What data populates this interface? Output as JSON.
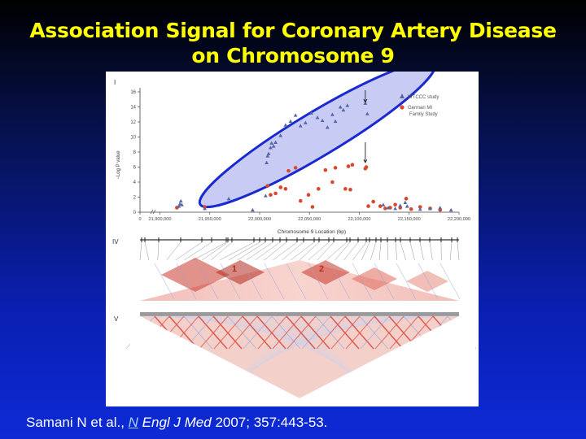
{
  "slide": {
    "title_line1": "Association Signal for Coronary Artery Disease",
    "title_line2": "on Chromosome 9",
    "citation_prefix": "Samani N et al., ",
    "citation_n": "N",
    "citation_journal": " Engl J Med",
    "citation_suffix": "  2007; 357:443-53."
  },
  "colors": {
    "wtccc": "#5866a8",
    "german": "#d7482c",
    "highlight_fill": "#c8ccf4",
    "highlight_stroke": "#1a2ad0"
  },
  "panels": {
    "panel_i": "I",
    "panel_iv": "IV",
    "panel_v": "V",
    "block1": "1",
    "block2": "2"
  },
  "chart_data": {
    "type": "scatter",
    "title": "",
    "xlabel": "Chromosome 9 Location (bp)",
    "ylabel": "−Log P value",
    "ylim": [
      0,
      16
    ],
    "yticks": [
      0,
      2,
      4,
      6,
      8,
      10,
      12,
      14,
      16
    ],
    "xticks": [
      "0",
      "21,900,000",
      "21,950,000",
      "22,000,000",
      "22,050,000",
      "22,100,000",
      "22,150,000",
      "22,200,000"
    ],
    "xlim": [
      21880000,
      22200000
    ],
    "legend": [
      "WTCCC study",
      "German MI Family Study"
    ],
    "series": [
      {
        "name": "WTCCC study",
        "marker": "triangle",
        "points": [
          [
            21919000,
            0.8
          ],
          [
            21920000,
            1.1
          ],
          [
            21921000,
            1.5
          ],
          [
            21922000,
            1.0
          ],
          [
            21945000,
            0.5
          ],
          [
            21969000,
            1.8
          ],
          [
            21993000,
            0.3
          ],
          [
            22006000,
            2.2
          ],
          [
            22007000,
            6.6
          ],
          [
            22008000,
            7.5
          ],
          [
            22009000,
            7.8
          ],
          [
            22011000,
            8.6
          ],
          [
            22012000,
            9.2
          ],
          [
            22014000,
            8.8
          ],
          [
            22016000,
            9.3
          ],
          [
            22021000,
            10.2
          ],
          [
            22026000,
            11.6
          ],
          [
            22031000,
            12.1
          ],
          [
            22036000,
            12.9
          ],
          [
            22041000,
            11.5
          ],
          [
            22046000,
            11.9
          ],
          [
            22052000,
            13.2
          ],
          [
            22058000,
            12.6
          ],
          [
            22063000,
            12.2
          ],
          [
            22068000,
            11.3
          ],
          [
            22073000,
            13.0
          ],
          [
            22076000,
            12.1
          ],
          [
            22081000,
            14.0
          ],
          [
            22084000,
            13.6
          ],
          [
            22088000,
            14.2
          ],
          [
            22106000,
            14.5
          ],
          [
            22108000,
            13.1
          ],
          [
            22124000,
            1.0
          ],
          [
            22129000,
            0.6
          ],
          [
            22136000,
            0.5
          ],
          [
            22141000,
            0.9
          ],
          [
            22146000,
            1.3
          ],
          [
            22148000,
            0.8
          ],
          [
            22161000,
            0.4
          ],
          [
            22171000,
            0.5
          ],
          [
            22181000,
            0.6
          ],
          [
            22192000,
            0.3
          ]
        ]
      },
      {
        "name": "German MI Family Study",
        "marker": "circle",
        "points": [
          [
            21917000,
            0.6
          ],
          [
            21945000,
            0.7
          ],
          [
            22008000,
            3.5
          ],
          [
            22011000,
            2.3
          ],
          [
            22016000,
            2.5
          ],
          [
            22021000,
            3.3
          ],
          [
            22026000,
            3.1
          ],
          [
            22029000,
            5.5
          ],
          [
            22036000,
            5.9
          ],
          [
            22041000,
            1.5
          ],
          [
            22049000,
            2.3
          ],
          [
            22053000,
            0.7
          ],
          [
            22059000,
            3.1
          ],
          [
            22066000,
            5.6
          ],
          [
            22073000,
            4.0
          ],
          [
            22076000,
            5.9
          ],
          [
            22086000,
            3.1
          ],
          [
            22089000,
            6.1
          ],
          [
            22091000,
            3.0
          ],
          [
            22093000,
            6.3
          ],
          [
            22106000,
            5.8
          ],
          [
            22107000,
            6.0
          ],
          [
            22109000,
            0.8
          ],
          [
            22114000,
            1.4
          ],
          [
            22121000,
            0.8
          ],
          [
            22126000,
            0.5
          ],
          [
            22131000,
            0.6
          ],
          [
            22136000,
            1.0
          ],
          [
            22141000,
            0.6
          ],
          [
            22147000,
            1.8
          ],
          [
            22152000,
            0.4
          ],
          [
            22161000,
            0.7
          ],
          [
            22171000,
            0.5
          ],
          [
            22181000,
            0.3
          ]
        ]
      }
    ]
  }
}
